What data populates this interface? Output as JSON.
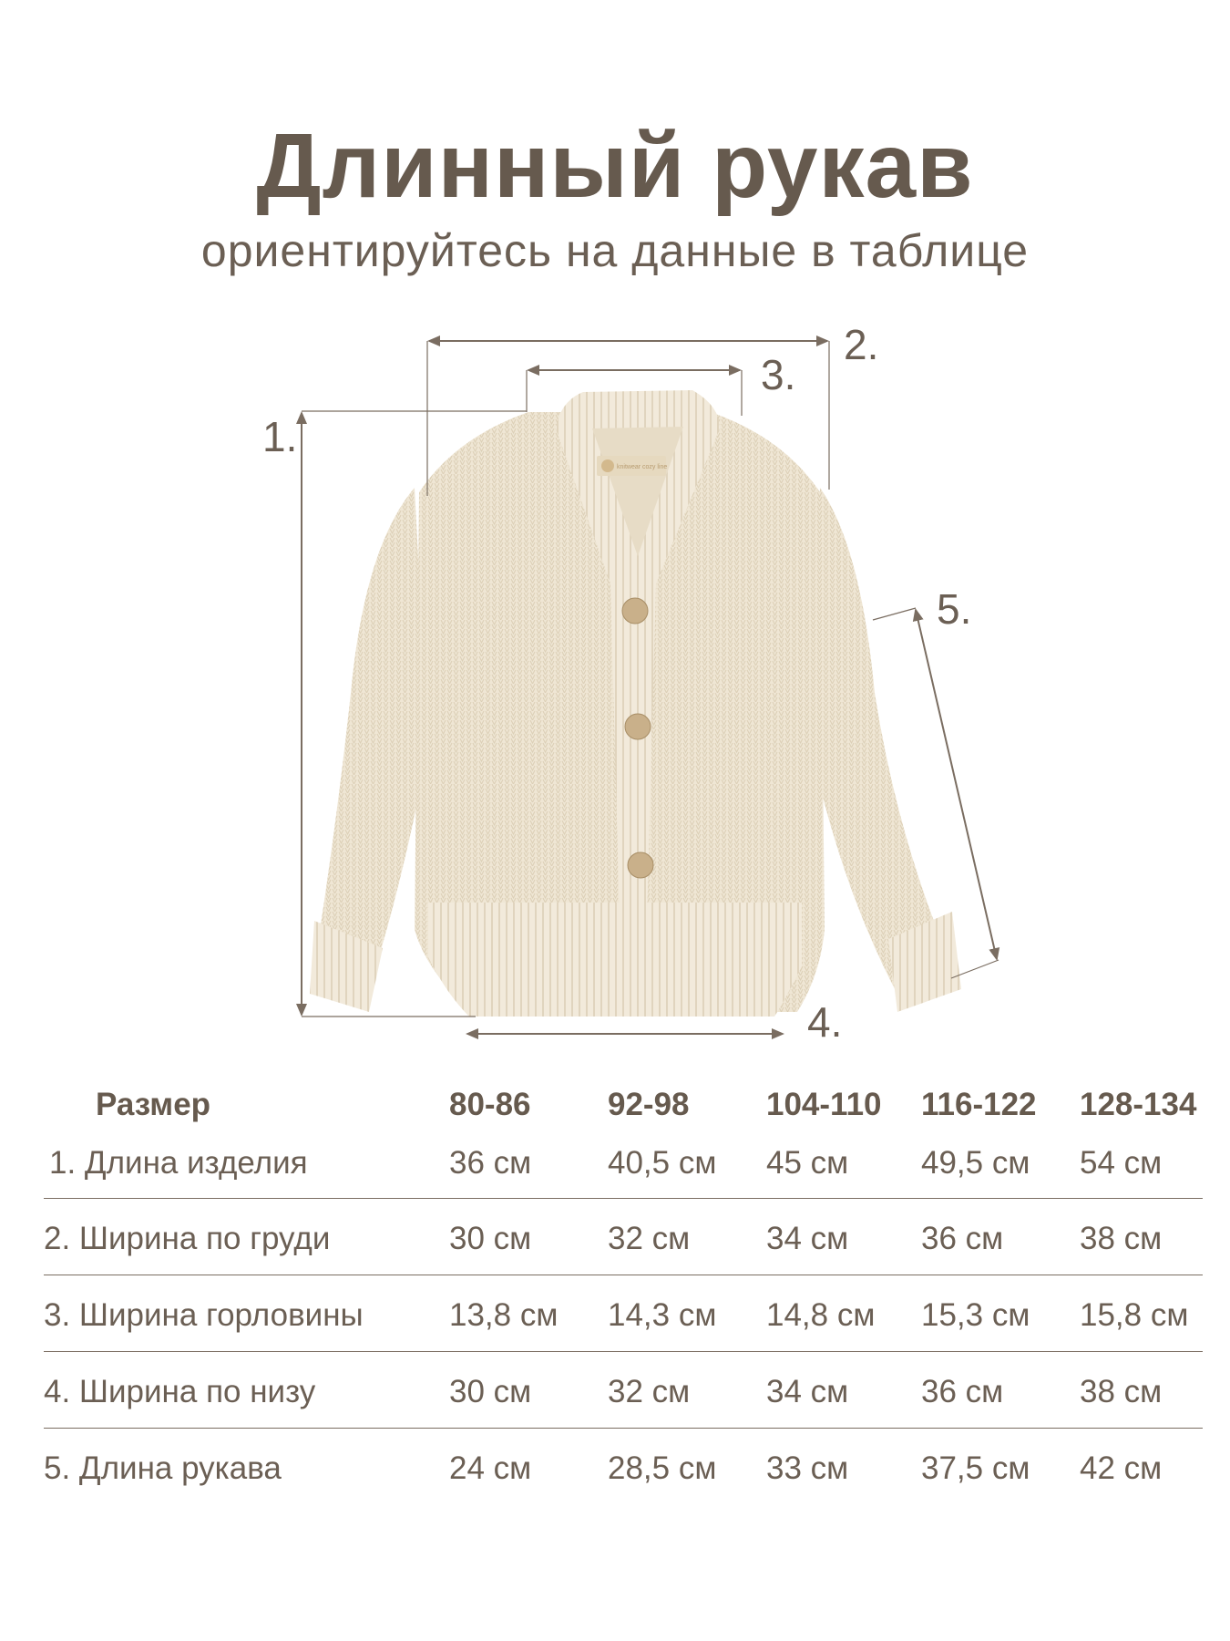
{
  "header": {
    "title": "Длинный рукав",
    "subtitle": "ориентируйтесь на данные в таблице"
  },
  "diagram": {
    "labels": [
      "1.",
      "2.",
      "3.",
      "4.",
      "5."
    ],
    "garment_tag_text": "knitwear cozy line",
    "colors": {
      "lines": "#7a6d61",
      "garment": "#efe6d4",
      "buttons": "#c9b08a"
    }
  },
  "table": {
    "header_label": "Размер",
    "sizes": [
      "80-86",
      "92-98",
      "104-110",
      "116-122",
      "128-134"
    ],
    "rows": [
      {
        "label": "1. Длина  изделия",
        "values": [
          "36 см",
          "40,5 см",
          "45 см",
          "49,5 см",
          "54 см"
        ]
      },
      {
        "label": "2. Ширина по груди",
        "values": [
          "30 см",
          "32 см",
          "34 см",
          "36 см",
          "38 см"
        ]
      },
      {
        "label": "3. Ширина горловины",
        "values": [
          "13,8 см",
          "14,3 см",
          "14,8 см",
          "15,3 см",
          "15,8 см"
        ]
      },
      {
        "label": "4. Ширина по низу",
        "values": [
          "30 см",
          "32 см",
          "34 см",
          "36 см",
          "38 см"
        ]
      },
      {
        "label": "5. Длина рукава",
        "values": [
          "24 см",
          "28,5 см",
          "33 см",
          "37,5 см",
          "42 см"
        ]
      }
    ]
  },
  "colors": {
    "text": "#665a4e",
    "divider": "#7a6d61",
    "background": "#ffffff"
  }
}
